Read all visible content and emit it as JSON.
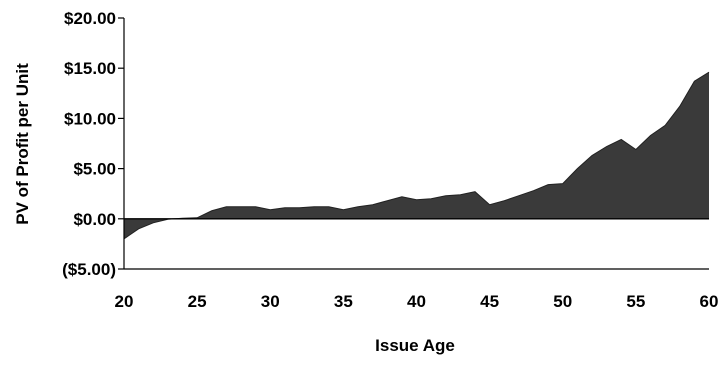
{
  "chart_data": {
    "type": "area",
    "title": "",
    "xlabel": "Issue Age",
    "ylabel": "PV of Profit per Unit",
    "xlim": [
      20,
      60
    ],
    "ylim": [
      -5,
      20
    ],
    "x_ticks": [
      20,
      25,
      30,
      35,
      40,
      45,
      50,
      55,
      60
    ],
    "x_tick_labels": [
      "20",
      "25",
      "30",
      "35",
      "40",
      "45",
      "50",
      "55",
      "60"
    ],
    "y_ticks": [
      20,
      15,
      10,
      5,
      0,
      -5
    ],
    "y_tick_labels": [
      "$20.00",
      "$15.00",
      "$10.00",
      "$5.00",
      "$0.00",
      "($5.00)"
    ],
    "grid": false,
    "legend": "none",
    "series": [
      {
        "x": [
          20,
          21,
          22,
          23,
          24,
          25,
          26,
          27,
          28,
          29,
          30,
          31,
          32,
          33,
          34,
          35,
          36,
          37,
          38,
          39,
          40,
          41,
          42,
          43,
          44,
          45,
          46,
          47,
          48,
          49,
          50,
          51,
          52,
          53,
          54,
          55,
          56,
          57,
          58,
          59,
          60
        ],
        "values": [
          -2.0,
          -1.0,
          -0.4,
          -0.05,
          0.05,
          0.1,
          0.8,
          1.2,
          1.2,
          1.2,
          0.9,
          1.1,
          1.1,
          1.2,
          1.2,
          0.9,
          1.2,
          1.4,
          1.8,
          2.2,
          1.9,
          2.0,
          2.3,
          2.4,
          2.7,
          1.4,
          1.8,
          2.3,
          2.8,
          3.4,
          3.5,
          5.0,
          6.3,
          7.2,
          7.9,
          6.9,
          8.3,
          9.3,
          11.2,
          13.7,
          14.6
        ]
      }
    ],
    "colors": {
      "fill": "#3a3a3a",
      "axis": "#000000"
    }
  }
}
